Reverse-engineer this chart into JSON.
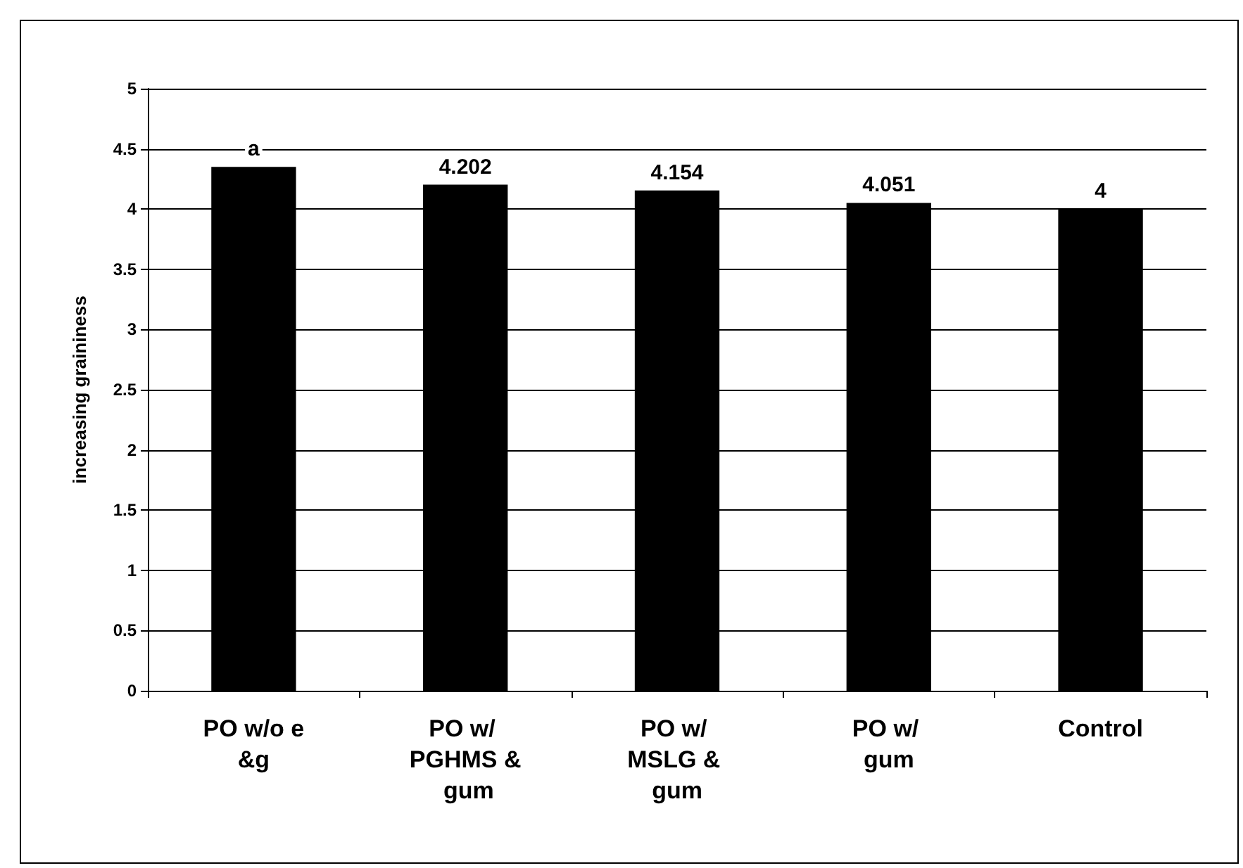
{
  "chart_data": {
    "type": "bar",
    "ylabel": "increasing graininess",
    "categories": [
      "PO w/o e&g",
      "PO w/ PGHMS & gum",
      "PO w/ MSLG & gum",
      "PO w/ gum",
      "Control"
    ],
    "values": [
      4.35,
      4.202,
      4.154,
      4.051,
      4
    ],
    "value_labels": [
      "a",
      "4.202",
      "4.154",
      "4.051",
      "4"
    ],
    "color": "#000000",
    "ylim": [
      0,
      5
    ],
    "yticks": [
      0,
      0.5,
      1,
      1.5,
      2,
      2.5,
      3,
      3.5,
      4,
      4.5,
      5
    ],
    "grid": "y"
  }
}
